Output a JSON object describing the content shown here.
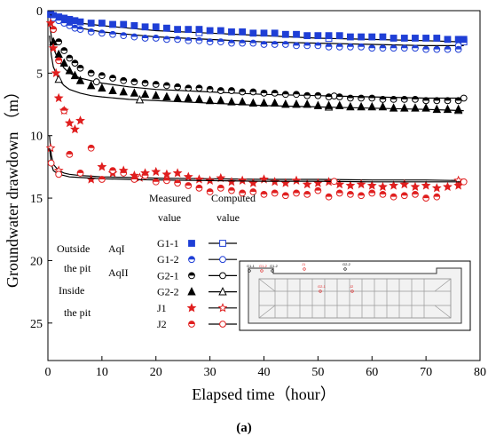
{
  "chart_data": {
    "type": "scatter",
    "title": "",
    "xlabel": "Elapsed time（hour）",
    "ylabel": "Groundwater drawdown （m）",
    "xlim": [
      0,
      80
    ],
    "ylim": [
      0,
      28
    ],
    "y_inverted": true,
    "x_ticks": [
      0,
      10,
      20,
      30,
      40,
      50,
      60,
      70,
      80
    ],
    "y_ticks": [
      0,
      5,
      10,
      15,
      20,
      25
    ],
    "grid": false,
    "legend_position": "bottom-center",
    "caption": "(a)",
    "legend": {
      "header_measured": "Measured",
      "header_computed": "Computed",
      "header_value_left": "value",
      "header_value_right": "value",
      "group_outside_line1": "Outside",
      "group_outside_line2": "the pit",
      "group_inside_line1": "Inside",
      "group_inside_line2": "the pit",
      "aquifer_1": "AqI",
      "aquifer_2": "AqII"
    },
    "inset_labels": [
      "G1-1",
      "G1-2",
      "J1",
      "G2-2",
      "G2-1",
      "J2",
      "G1-2"
    ],
    "series": [
      {
        "name": "G1-1",
        "color": "#1f3fd6",
        "measured_marker": "square-filled",
        "computed_marker": "square-open",
        "measured": {
          "x": [
            0.5,
            1,
            2,
            3,
            4,
            5,
            6,
            8,
            10,
            12,
            14,
            16,
            18,
            20,
            22,
            24,
            26,
            28,
            30,
            32,
            34,
            36,
            38,
            40,
            42,
            44,
            46,
            48,
            50,
            52,
            54,
            56,
            58,
            60,
            62,
            64,
            66,
            68,
            70,
            72,
            74,
            76,
            77
          ],
          "y": [
            0.3,
            0.4,
            0.5,
            0.6,
            0.7,
            0.8,
            0.9,
            1.0,
            1.0,
            1.1,
            1.1,
            1.2,
            1.3,
            1.3,
            1.4,
            1.5,
            1.5,
            1.5,
            1.6,
            1.6,
            1.7,
            1.7,
            1.8,
            1.8,
            1.8,
            1.9,
            1.9,
            2.0,
            2.0,
            2.0,
            2.0,
            2.1,
            2.1,
            2.1,
            2.1,
            2.2,
            2.2,
            2.2,
            2.2,
            2.2,
            2.3,
            2.3,
            2.3
          ]
        },
        "computed": {
          "x": [
            0.5,
            1,
            2,
            4,
            6,
            10,
            15,
            20,
            30,
            40,
            50,
            60,
            70,
            77
          ],
          "y": [
            0.2,
            0.4,
            0.6,
            0.8,
            1.0,
            1.2,
            1.4,
            1.6,
            1.8,
            2.0,
            2.2,
            2.3,
            2.4,
            2.5
          ],
          "marker_x": [
            28,
            52,
            77
          ]
        }
      },
      {
        "name": "G1-2",
        "color": "#1f3fd6",
        "measured_marker": "circle-half",
        "computed_marker": "circle-open",
        "measured": {
          "x": [
            1,
            2,
            3,
            4,
            5,
            6,
            8,
            10,
            12,
            14,
            16,
            18,
            20,
            22,
            24,
            26,
            28,
            30,
            32,
            34,
            36,
            38,
            40,
            42,
            44,
            46,
            48,
            50,
            52,
            54,
            56,
            58,
            60,
            62,
            64,
            66,
            68,
            70,
            72,
            74,
            76
          ],
          "y": [
            0.6,
            0.8,
            1.0,
            1.2,
            1.4,
            1.5,
            1.7,
            1.8,
            1.9,
            2.0,
            2.1,
            2.2,
            2.2,
            2.3,
            2.3,
            2.4,
            2.4,
            2.5,
            2.5,
            2.6,
            2.6,
            2.6,
            2.7,
            2.7,
            2.7,
            2.8,
            2.8,
            2.8,
            2.9,
            2.9,
            2.9,
            2.9,
            3.0,
            3.0,
            3.0,
            3.0,
            3.0,
            3.1,
            3.1,
            3.1,
            3.1
          ]
        },
        "computed": {
          "x": [
            0.5,
            1,
            2,
            4,
            6,
            10,
            15,
            20,
            30,
            40,
            50,
            60,
            70,
            77
          ],
          "y": [
            0.3,
            0.6,
            0.9,
            1.2,
            1.4,
            1.7,
            1.9,
            2.1,
            2.3,
            2.5,
            2.6,
            2.7,
            2.8,
            2.8
          ],
          "marker_x": [
            76
          ]
        }
      },
      {
        "name": "G2-1",
        "color": "#000000",
        "measured_marker": "circle-half",
        "computed_marker": "circle-open",
        "measured": {
          "x": [
            1,
            2,
            3,
            4,
            5,
            6,
            8,
            10,
            12,
            14,
            16,
            18,
            20,
            22,
            24,
            26,
            28,
            30,
            32,
            34,
            36,
            38,
            40,
            42,
            44,
            46,
            48,
            50,
            52,
            54,
            56,
            58,
            60,
            62,
            64,
            66,
            68,
            70,
            72,
            74,
            76
          ],
          "y": [
            1.5,
            2.5,
            3.2,
            3.8,
            4.2,
            4.6,
            5.0,
            5.2,
            5.4,
            5.6,
            5.7,
            5.8,
            5.9,
            6.0,
            6.1,
            6.2,
            6.2,
            6.3,
            6.4,
            6.4,
            6.5,
            6.5,
            6.6,
            6.6,
            6.7,
            6.7,
            6.8,
            6.8,
            6.9,
            6.9,
            7.0,
            7.0,
            7.0,
            7.1,
            7.1,
            7.1,
            7.1,
            7.2,
            7.2,
            7.2,
            7.2
          ]
        },
        "computed": {
          "x": [
            0.3,
            0.6,
            1,
            2,
            3,
            4,
            6,
            8,
            10,
            15,
            20,
            30,
            40,
            50,
            60,
            70,
            77
          ],
          "y": [
            1.0,
            2.0,
            3.0,
            4.0,
            4.6,
            5.0,
            5.4,
            5.6,
            5.8,
            6.1,
            6.3,
            6.5,
            6.7,
            6.8,
            6.9,
            7.0,
            7.0
          ],
          "marker_x": [
            2,
            9,
            53,
            77
          ]
        }
      },
      {
        "name": "G2-2",
        "color": "#000000",
        "measured_marker": "triangle-filled",
        "computed_marker": "triangle-open",
        "measured": {
          "x": [
            1,
            2,
            3,
            4,
            5,
            6,
            8,
            10,
            12,
            14,
            16,
            18,
            20,
            22,
            24,
            26,
            28,
            30,
            32,
            34,
            36,
            38,
            40,
            42,
            44,
            46,
            48,
            50,
            52,
            54,
            56,
            58,
            60,
            62,
            64,
            66,
            68,
            70,
            72,
            74,
            76
          ],
          "y": [
            2.5,
            3.5,
            4.2,
            4.8,
            5.2,
            5.6,
            6.0,
            6.2,
            6.4,
            6.5,
            6.6,
            6.7,
            6.8,
            6.9,
            7.0,
            7.0,
            7.1,
            7.2,
            7.2,
            7.3,
            7.3,
            7.4,
            7.4,
            7.4,
            7.5,
            7.5,
            7.5,
            7.6,
            7.6,
            7.6,
            7.7,
            7.7,
            7.7,
            7.7,
            7.8,
            7.8,
            7.8,
            7.8,
            7.9,
            7.9,
            7.9
          ]
        },
        "computed": {
          "x": [
            0.3,
            0.6,
            1,
            2,
            3,
            4,
            6,
            8,
            10,
            15,
            20,
            30,
            40,
            50,
            60,
            70,
            77
          ],
          "y": [
            2.0,
            3.5,
            4.5,
            5.5,
            6.0,
            6.3,
            6.6,
            6.8,
            6.9,
            7.1,
            7.2,
            7.4,
            7.6,
            7.7,
            7.8,
            7.9,
            8.0
          ],
          "marker_x": [
            2,
            17,
            52,
            76
          ]
        }
      },
      {
        "name": "J1",
        "color": "#e01f1f",
        "measured_marker": "star-filled",
        "computed_marker": "star-open",
        "measured": {
          "x": [
            0.5,
            1,
            1.5,
            2,
            3,
            4,
            5,
            6,
            8,
            10,
            12,
            14,
            16,
            18,
            20,
            22,
            24,
            26,
            28,
            30,
            32,
            34,
            36,
            38,
            40,
            42,
            44,
            46,
            48,
            50,
            52,
            54,
            56,
            58,
            60,
            62,
            64,
            66,
            68,
            70,
            72,
            74,
            76
          ],
          "y": [
            1.0,
            3.0,
            5.0,
            7.0,
            8.0,
            9.0,
            9.5,
            8.8,
            13.5,
            12.5,
            13.0,
            12.8,
            13.2,
            13.0,
            12.9,
            13.1,
            13.0,
            13.3,
            13.5,
            13.6,
            13.4,
            13.7,
            13.6,
            13.8,
            13.5,
            13.7,
            13.8,
            13.6,
            13.9,
            13.8,
            13.7,
            13.9,
            14.0,
            13.9,
            14.0,
            14.1,
            14.0,
            13.9,
            14.1,
            14.0,
            14.2,
            14.1,
            14.0
          ]
        },
        "computed": {
          "x": [
            0.3,
            0.6,
            1,
            2,
            3,
            4,
            6,
            8,
            10,
            15,
            20,
            30,
            40,
            50,
            60,
            70,
            77
          ],
          "y": [
            10.0,
            11.5,
            12.3,
            12.8,
            13.0,
            13.1,
            13.2,
            13.25,
            13.3,
            13.35,
            13.4,
            13.45,
            13.5,
            13.5,
            13.55,
            13.55,
            13.6
          ],
          "marker_x": [
            0.5,
            2,
            17,
            76
          ]
        }
      },
      {
        "name": "J2",
        "color": "#e01f1f",
        "measured_marker": "circle-half",
        "computed_marker": "circle-open",
        "measured": {
          "x": [
            1,
            2,
            3,
            4,
            6,
            8,
            10,
            12,
            14,
            16,
            18,
            20,
            22,
            24,
            26,
            28,
            30,
            32,
            34,
            36,
            38,
            40,
            42,
            44,
            46,
            48,
            50,
            52,
            54,
            56,
            58,
            60,
            62,
            64,
            66,
            68,
            70,
            72
          ],
          "y": [
            1.5,
            4.0,
            8.0,
            11.5,
            13.0,
            11.0,
            13.5,
            12.8,
            13.0,
            13.5,
            13.2,
            13.7,
            13.6,
            13.8,
            14.0,
            14.2,
            14.5,
            14.2,
            14.4,
            14.6,
            14.5,
            14.7,
            14.6,
            14.8,
            14.6,
            14.7,
            14.4,
            14.9,
            14.6,
            14.7,
            14.8,
            14.6,
            14.7,
            14.9,
            14.8,
            14.7,
            15.0,
            14.9
          ]
        },
        "computed": {
          "x": [
            0.3,
            0.6,
            1,
            2,
            3,
            4,
            6,
            8,
            10,
            15,
            20,
            30,
            40,
            50,
            60,
            70,
            77
          ],
          "y": [
            11.0,
            12.2,
            12.8,
            13.1,
            13.2,
            13.3,
            13.35,
            13.4,
            13.45,
            13.5,
            13.55,
            13.6,
            13.65,
            13.65,
            13.7,
            13.7,
            13.7
          ],
          "marker_x": [
            0.6,
            2,
            53,
            77
          ]
        }
      }
    ]
  }
}
